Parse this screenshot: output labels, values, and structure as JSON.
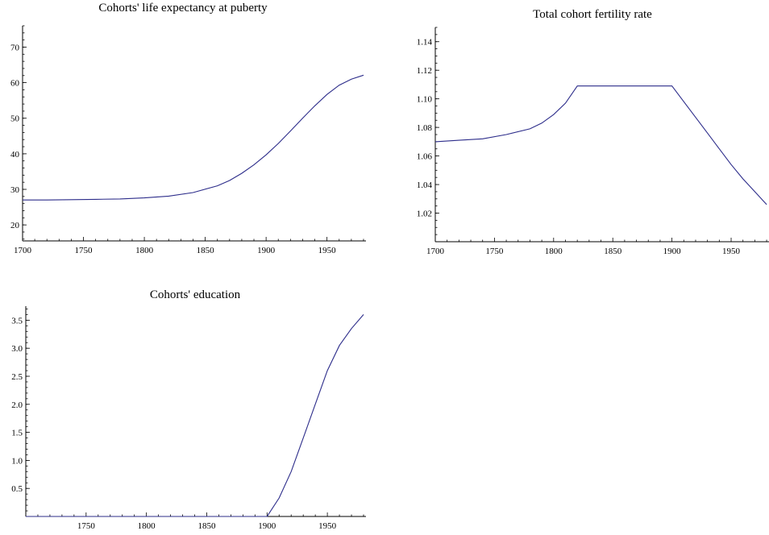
{
  "accent_color": "#2c2c8a",
  "chart_data": [
    {
      "type": "line",
      "title": "Cohorts' life expectancy at puberty",
      "xlabel": "",
      "ylabel": "",
      "xlim": [
        1700,
        1982
      ],
      "ylim": [
        15.5,
        76
      ],
      "x_ticks": [
        1700,
        1750,
        1800,
        1850,
        1900,
        1950
      ],
      "y_ticks": [
        20,
        30,
        40,
        50,
        60,
        70
      ],
      "y_minor_step": 2,
      "x_minor_step": 10,
      "axis_origin": [
        1700,
        15.5
      ],
      "grid": false,
      "series": [
        {
          "x": [
            1700,
            1720,
            1740,
            1760,
            1780,
            1800,
            1820,
            1840,
            1860,
            1870,
            1880,
            1890,
            1900,
            1910,
            1920,
            1930,
            1940,
            1950,
            1960,
            1970,
            1980
          ],
          "y": [
            27.0,
            27.0,
            27.1,
            27.2,
            27.3,
            27.6,
            28.1,
            29.1,
            31.0,
            32.5,
            34.5,
            36.9,
            39.7,
            42.9,
            46.4,
            50.0,
            53.5,
            56.7,
            59.3,
            61.0,
            62.1
          ]
        }
      ]
    },
    {
      "type": "line",
      "title": "Total cohort fertility rate",
      "xlabel": "",
      "ylabel": "",
      "xlim": [
        1700,
        1982
      ],
      "ylim": [
        1.0,
        1.15
      ],
      "x_ticks": [
        1700,
        1750,
        1800,
        1850,
        1900,
        1950
      ],
      "y_ticks": [
        "1.02",
        "1.04",
        "1.06",
        "1.08",
        "1.10",
        "1.12",
        "1.14"
      ],
      "y_minor_step": 0.005,
      "x_minor_step": 10,
      "axis_origin": [
        1700,
        1.0
      ],
      "grid": false,
      "series": [
        {
          "x": [
            1700,
            1720,
            1740,
            1760,
            1780,
            1790,
            1800,
            1810,
            1820,
            1900,
            1910,
            1920,
            1930,
            1940,
            1950,
            1960,
            1970,
            1980
          ],
          "y": [
            1.07,
            1.071,
            1.072,
            1.075,
            1.079,
            1.083,
            1.089,
            1.097,
            1.109,
            1.109,
            1.098,
            1.087,
            1.076,
            1.065,
            1.054,
            1.044,
            1.035,
            1.026
          ]
        }
      ]
    },
    {
      "type": "line",
      "title": "Cohorts' education",
      "xlabel": "",
      "ylabel": "",
      "xlim": [
        1700,
        1982
      ],
      "ylim": [
        0,
        3.75
      ],
      "x_ticks": [
        1750,
        1800,
        1850,
        1900,
        1950
      ],
      "y_ticks": [
        "0.5",
        "1.0",
        "1.5",
        "2.0",
        "2.5",
        "3.0",
        "3.5"
      ],
      "y_minor_step": 0.1,
      "x_minor_step": 10,
      "axis_origin": [
        1700,
        0
      ],
      "grid": false,
      "series": [
        {
          "x": [
            1700,
            1900,
            1910,
            1920,
            1930,
            1940,
            1950,
            1960,
            1970,
            1980
          ],
          "y": [
            0,
            0,
            0.33,
            0.8,
            1.4,
            2.0,
            2.6,
            3.05,
            3.35,
            3.6
          ]
        }
      ]
    }
  ]
}
